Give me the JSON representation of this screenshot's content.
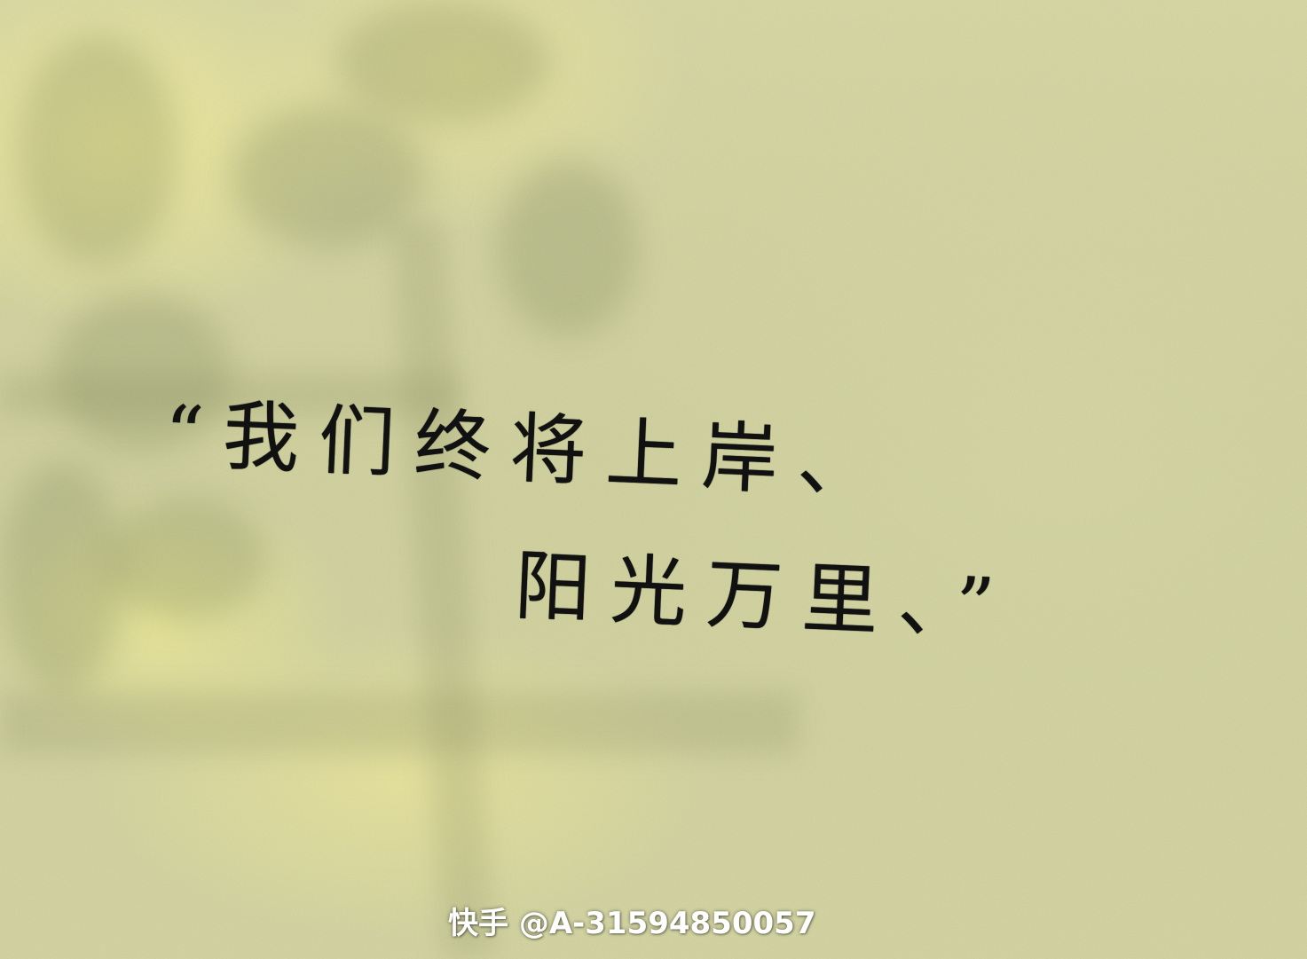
{
  "image": {
    "description_colors": {
      "background": "#d2d39d",
      "sunlight": "#f2ec96",
      "shadow": "#7f8650",
      "ink": "#111111",
      "watermark": "#ffffff"
    }
  },
  "quote": {
    "line1": "“我们终将上岸、",
    "line2": "阳光万里、”"
  },
  "watermark": {
    "text": "快手 @A-31594850057"
  }
}
